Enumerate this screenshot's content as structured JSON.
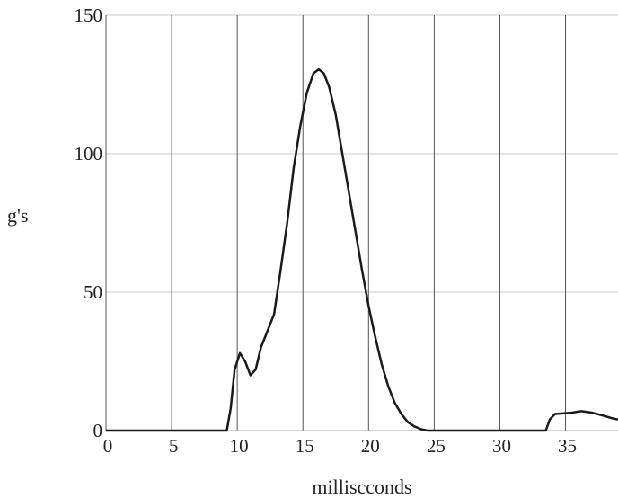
{
  "chart_data": {
    "type": "line",
    "title": "",
    "xlabel": "milliscconds",
    "ylabel": "g's",
    "xlim": [
      0,
      39
    ],
    "ylim": [
      0,
      150
    ],
    "x_ticks": [
      0,
      5,
      10,
      15,
      20,
      25,
      30,
      35
    ],
    "x_tick_labels": [
      "0",
      "5",
      "10",
      "15",
      "20",
      "25",
      "30",
      "35"
    ],
    "y_ticks": [
      0,
      50,
      100,
      150
    ],
    "y_tick_labels": [
      "0",
      "50",
      "100",
      "150"
    ],
    "grid": true,
    "legend": "none",
    "colors": {
      "line": "#1a1a1a",
      "grid": "#c8c8c8",
      "vertical_grid": "#555555"
    },
    "series": [
      {
        "x": [
          0,
          5,
          9.2,
          9.5,
          9.8,
          10.2,
          10.6,
          11.0,
          11.4,
          11.8,
          12.3,
          12.8,
          13.3,
          13.8,
          14.3,
          14.8,
          15.3,
          15.8,
          16.2,
          16.6,
          17.0,
          17.5,
          18.0,
          18.5,
          19.0,
          19.5,
          20.0,
          20.5,
          21.0,
          21.5,
          22.0,
          22.5,
          23.0,
          23.5,
          24.0,
          24.5,
          25.0,
          28.0,
          33.5,
          33.8,
          34.2,
          34.8,
          35.5,
          36.2,
          37.0,
          37.8,
          38.5,
          39.0
        ],
        "y": [
          0,
          0,
          0,
          8,
          22,
          28,
          25,
          20,
          22,
          30,
          36,
          42,
          58,
          75,
          95,
          110,
          122,
          129,
          130.5,
          129,
          124,
          114,
          100,
          86,
          72,
          58,
          45,
          34,
          24,
          16,
          10,
          6,
          3,
          1.5,
          0.5,
          0,
          0,
          0,
          0,
          4,
          6,
          6.2,
          6.5,
          7,
          6.5,
          5.5,
          4.5,
          4
        ]
      }
    ]
  }
}
